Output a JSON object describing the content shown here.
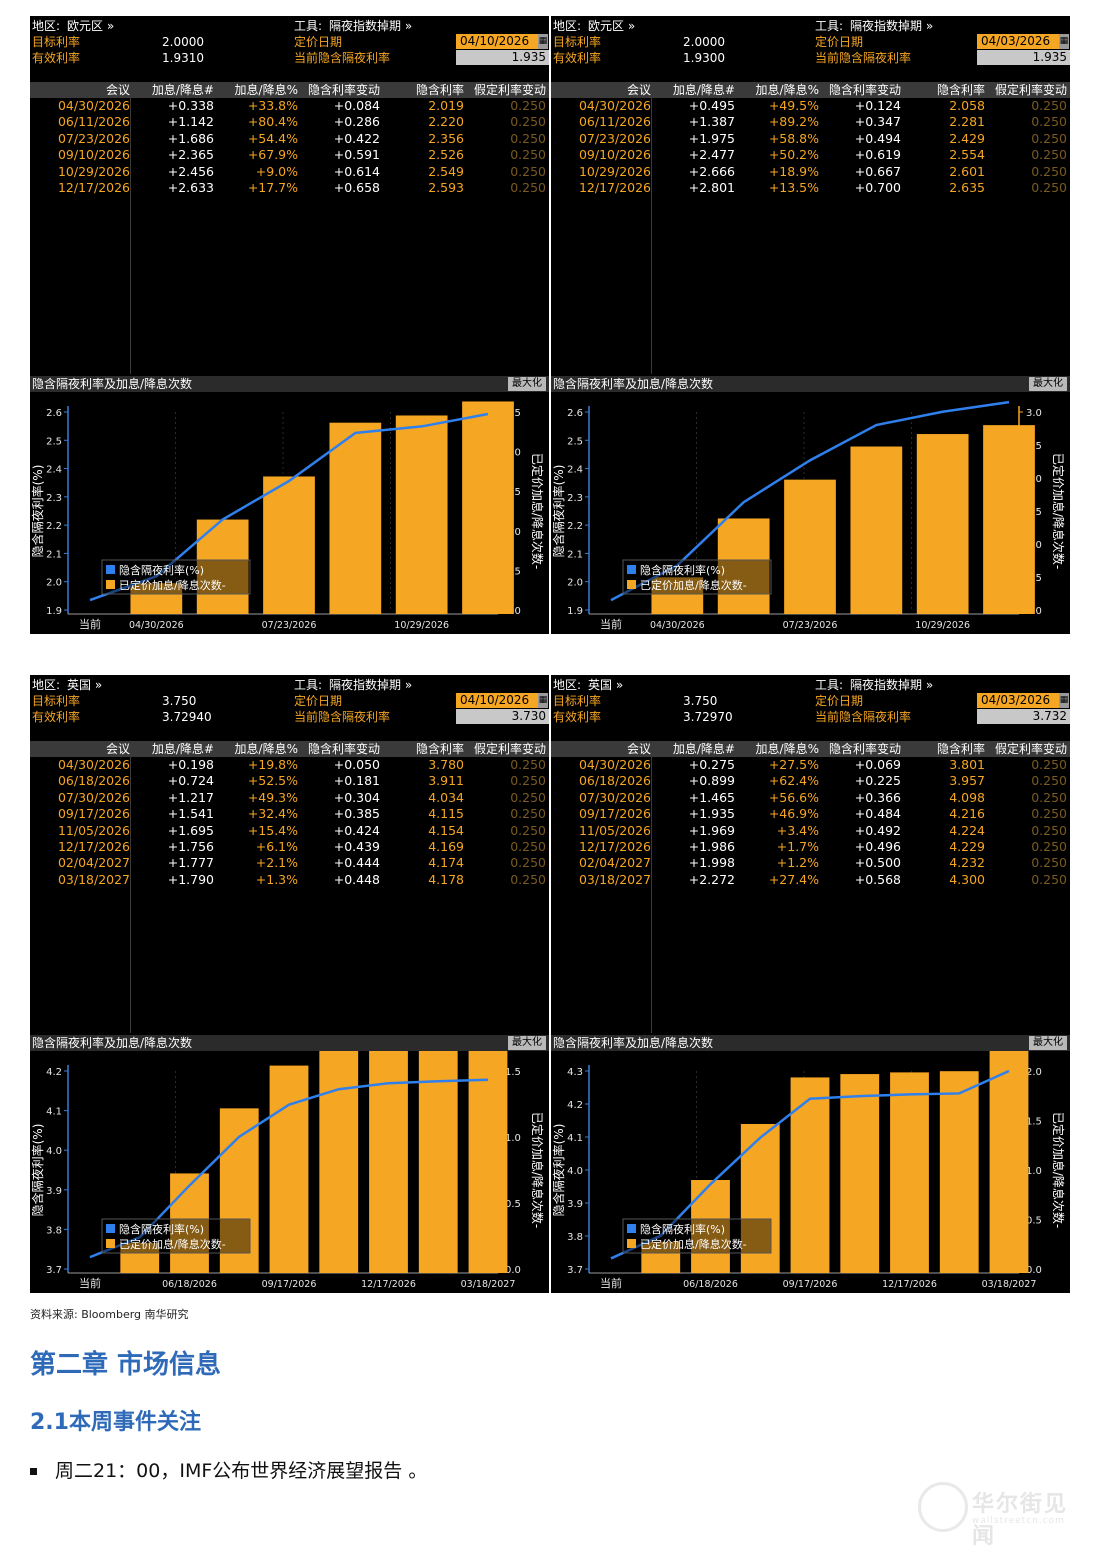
{
  "labels": {
    "region": "地区:",
    "tool": "工具:",
    "target": "目标利率",
    "effective": "有效利率",
    "pricing_date": "定价日期",
    "current_implied": "当前隐含隔夜利率",
    "col_headers": [
      "会议",
      "加息/降息#",
      "加息/降息%",
      "隐含利率变动",
      "隐含利率",
      "假定利率变动"
    ],
    "chart_title": "隐含隔夜利率及加息/降息次数",
    "maximize": "最大化",
    "legend_line": "隐含隔夜利率(%)",
    "legend_bar": "已定价加息/降息次数-",
    "y_left": "隐含隔夜利率(%)",
    "y_right": "已定价加息/降息次数-",
    "x_current": "当前"
  },
  "panels": [
    {
      "region": "欧元区 »",
      "tool": "隔夜指数掉期 »",
      "target": "2.0000",
      "effective": "1.9310",
      "date": "04/10/2026",
      "implied": "1.935",
      "rows": [
        [
          "04/30/2026",
          "+0.338",
          "+33.8%",
          "+0.084",
          "2.019",
          "0.250"
        ],
        [
          "06/11/2026",
          "+1.142",
          "+80.4%",
          "+0.286",
          "2.220",
          "0.250"
        ],
        [
          "07/23/2026",
          "+1.686",
          "+54.4%",
          "+0.422",
          "2.356",
          "0.250"
        ],
        [
          "09/10/2026",
          "+2.365",
          "+67.9%",
          "+0.591",
          "2.526",
          "0.250"
        ],
        [
          "10/29/2026",
          "+2.456",
          "+9.0%",
          "+0.614",
          "2.549",
          "0.250"
        ],
        [
          "12/17/2026",
          "+2.633",
          "+17.7%",
          "+0.658",
          "2.593",
          "0.250"
        ]
      ]
    },
    {
      "region": "欧元区 »",
      "tool": "隔夜指数掉期 »",
      "target": "2.0000",
      "effective": "1.9300",
      "date": "04/03/2026",
      "implied": "1.935",
      "rows": [
        [
          "04/30/2026",
          "+0.495",
          "+49.5%",
          "+0.124",
          "2.058",
          "0.250"
        ],
        [
          "06/11/2026",
          "+1.387",
          "+89.2%",
          "+0.347",
          "2.281",
          "0.250"
        ],
        [
          "07/23/2026",
          "+1.975",
          "+58.8%",
          "+0.494",
          "2.429",
          "0.250"
        ],
        [
          "09/10/2026",
          "+2.477",
          "+50.2%",
          "+0.619",
          "2.554",
          "0.250"
        ],
        [
          "10/29/2026",
          "+2.666",
          "+18.9%",
          "+0.667",
          "2.601",
          "0.250"
        ],
        [
          "12/17/2026",
          "+2.801",
          "+13.5%",
          "+0.700",
          "2.635",
          "0.250"
        ]
      ]
    },
    {
      "region": "英国 »",
      "tool": "隔夜指数掉期 »",
      "target": "3.750",
      "effective": "3.72940",
      "date": "04/10/2026",
      "implied": "3.730",
      "rows": [
        [
          "04/30/2026",
          "+0.198",
          "+19.8%",
          "+0.050",
          "3.780",
          "0.250"
        ],
        [
          "06/18/2026",
          "+0.724",
          "+52.5%",
          "+0.181",
          "3.911",
          "0.250"
        ],
        [
          "07/30/2026",
          "+1.217",
          "+49.3%",
          "+0.304",
          "4.034",
          "0.250"
        ],
        [
          "09/17/2026",
          "+1.541",
          "+32.4%",
          "+0.385",
          "4.115",
          "0.250"
        ],
        [
          "11/05/2026",
          "+1.695",
          "+15.4%",
          "+0.424",
          "4.154",
          "0.250"
        ],
        [
          "12/17/2026",
          "+1.756",
          "+6.1%",
          "+0.439",
          "4.169",
          "0.250"
        ],
        [
          "02/04/2027",
          "+1.777",
          "+2.1%",
          "+0.444",
          "4.174",
          "0.250"
        ],
        [
          "03/18/2027",
          "+1.790",
          "+1.3%",
          "+0.448",
          "4.178",
          "0.250"
        ]
      ]
    },
    {
      "region": "英国 »",
      "tool": "隔夜指数掉期 »",
      "target": "3.750",
      "effective": "3.72970",
      "date": "04/03/2026",
      "implied": "3.732",
      "rows": [
        [
          "04/30/2026",
          "+0.275",
          "+27.5%",
          "+0.069",
          "3.801",
          "0.250"
        ],
        [
          "06/18/2026",
          "+0.899",
          "+62.4%",
          "+0.225",
          "3.957",
          "0.250"
        ],
        [
          "07/30/2026",
          "+1.465",
          "+56.6%",
          "+0.366",
          "4.098",
          "0.250"
        ],
        [
          "09/17/2026",
          "+1.935",
          "+46.9%",
          "+0.484",
          "4.216",
          "0.250"
        ],
        [
          "11/05/2026",
          "+1.969",
          "+3.4%",
          "+0.492",
          "4.224",
          "0.250"
        ],
        [
          "12/17/2026",
          "+1.986",
          "+1.7%",
          "+0.496",
          "4.229",
          "0.250"
        ],
        [
          "02/04/2027",
          "+1.998",
          "+1.2%",
          "+0.500",
          "4.232",
          "0.250"
        ],
        [
          "03/18/2027",
          "+2.272",
          "+27.4%",
          "+0.568",
          "4.300",
          "0.250"
        ]
      ]
    }
  ],
  "chart_data": [
    {
      "type": "bar+line",
      "x_ticks": [
        "当前",
        "04/30/2026",
        "07/23/2026",
        "10/29/2026"
      ],
      "categories": [
        "04/30/2026",
        "06/11/2026",
        "07/23/2026",
        "09/10/2026",
        "10/29/2026",
        "12/17/2026"
      ],
      "bar_series": {
        "name": "已定价加息/降息次数-",
        "values": [
          0.338,
          1.142,
          1.686,
          2.365,
          2.456,
          2.633
        ]
      },
      "line_series": {
        "name": "隐含隔夜利率(%)",
        "x": [
          "当前",
          "04/30/2026",
          "06/11/2026",
          "07/23/2026",
          "09/10/2026",
          "10/29/2026",
          "12/17/2026"
        ],
        "values": [
          1.935,
          2.019,
          2.22,
          2.356,
          2.526,
          2.549,
          2.593
        ]
      },
      "ylim_left": [
        1.9,
        2.6
      ],
      "yticks_left": [
        1.9,
        2.0,
        2.1,
        2.2,
        2.3,
        2.4,
        2.5,
        2.6
      ],
      "ylim_right": [
        0.0,
        2.5
      ],
      "yticks_right": [
        0.0,
        0.5,
        1.0,
        1.5,
        2.0,
        2.5
      ],
      "colors": {
        "bar": "#f5a623",
        "line": "#2f80ed"
      }
    },
    {
      "type": "bar+line",
      "x_ticks": [
        "当前",
        "04/30/2026",
        "07/23/2026",
        "10/29/2026"
      ],
      "categories": [
        "04/30/2026",
        "06/11/2026",
        "07/23/2026",
        "09/10/2026",
        "10/29/2026",
        "12/17/2026"
      ],
      "bar_series": {
        "name": "已定价加息/降息次数-",
        "values": [
          0.495,
          1.387,
          1.975,
          2.477,
          2.666,
          2.801
        ]
      },
      "line_series": {
        "name": "隐含隔夜利率(%)",
        "x": [
          "当前",
          "04/30/2026",
          "06/11/2026",
          "07/23/2026",
          "09/10/2026",
          "10/29/2026",
          "12/17/2026"
        ],
        "values": [
          1.935,
          2.058,
          2.281,
          2.429,
          2.554,
          2.601,
          2.635
        ]
      },
      "ylim_left": [
        1.9,
        2.6
      ],
      "yticks_left": [
        1.9,
        2.0,
        2.1,
        2.2,
        2.3,
        2.4,
        2.5,
        2.6
      ],
      "ylim_right": [
        0.0,
        3.0
      ],
      "yticks_right": [
        0.0,
        0.5,
        1.0,
        1.5,
        2.0,
        2.5,
        3.0
      ],
      "colors": {
        "bar": "#f5a623",
        "line": "#2f80ed"
      }
    },
    {
      "type": "bar+line",
      "x_ticks": [
        "当前",
        "06/18/2026",
        "09/17/2026",
        "12/17/2026",
        "03/18/2027"
      ],
      "categories": [
        "04/30/2026",
        "06/18/2026",
        "07/30/2026",
        "09/17/2026",
        "11/05/2026",
        "12/17/2026",
        "02/04/2027",
        "03/18/2027"
      ],
      "bar_series": {
        "name": "已定价加息/降息次数-",
        "values": [
          0.198,
          0.724,
          1.217,
          1.541,
          1.695,
          1.756,
          1.777,
          1.79
        ]
      },
      "line_series": {
        "name": "隐含隔夜利率(%)",
        "x": [
          "当前",
          "04/30/2026",
          "06/18/2026",
          "07/30/2026",
          "09/17/2026",
          "11/05/2026",
          "12/17/2026",
          "02/04/2027",
          "03/18/2027"
        ],
        "values": [
          3.73,
          3.78,
          3.911,
          4.034,
          4.115,
          4.154,
          4.169,
          4.174,
          4.178
        ]
      },
      "ylim_left": [
        3.7,
        4.2
      ],
      "yticks_left": [
        3.7,
        3.8,
        3.9,
        4.0,
        4.1,
        4.2
      ],
      "ylim_right": [
        0.0,
        1.5
      ],
      "yticks_right": [
        0.0,
        0.5,
        1.0,
        1.5
      ],
      "colors": {
        "bar": "#f5a623",
        "line": "#2f80ed"
      }
    },
    {
      "type": "bar+line",
      "x_ticks": [
        "当前",
        "06/18/2026",
        "09/17/2026",
        "12/17/2026",
        "03/18/2027"
      ],
      "categories": [
        "04/30/2026",
        "06/18/2026",
        "07/30/2026",
        "09/17/2026",
        "11/05/2026",
        "12/17/2026",
        "02/04/2027",
        "03/18/2027"
      ],
      "bar_series": {
        "name": "已定价加息/降息次数-",
        "values": [
          0.275,
          0.899,
          1.465,
          1.935,
          1.969,
          1.986,
          1.998,
          2.272
        ]
      },
      "line_series": {
        "name": "隐含隔夜利率(%)",
        "x": [
          "当前",
          "04/30/2026",
          "06/18/2026",
          "07/30/2026",
          "09/17/2026",
          "11/05/2026",
          "12/17/2026",
          "02/04/2027",
          "03/18/2027"
        ],
        "values": [
          3.732,
          3.801,
          3.957,
          4.098,
          4.216,
          4.224,
          4.229,
          4.232,
          4.3
        ]
      },
      "ylim_left": [
        3.7,
        4.3
      ],
      "yticks_left": [
        3.7,
        3.8,
        3.9,
        4.0,
        4.1,
        4.2,
        4.3
      ],
      "ylim_right": [
        0.0,
        2.0
      ],
      "yticks_right": [
        0.0,
        0.5,
        1.0,
        1.5,
        2.0
      ],
      "colors": {
        "bar": "#f5a623",
        "line": "#2f80ed"
      }
    }
  ],
  "footer": {
    "source": "资料来源: Bloomberg 南华研究",
    "chapter": "第二章 市场信息",
    "section": "2.1本周事件关注",
    "bullet": "周二21：00，IMF公布世界经济展望报告 。"
  },
  "watermark": {
    "text": "华尔街见闻",
    "sub": "wallstreetcn.com"
  }
}
